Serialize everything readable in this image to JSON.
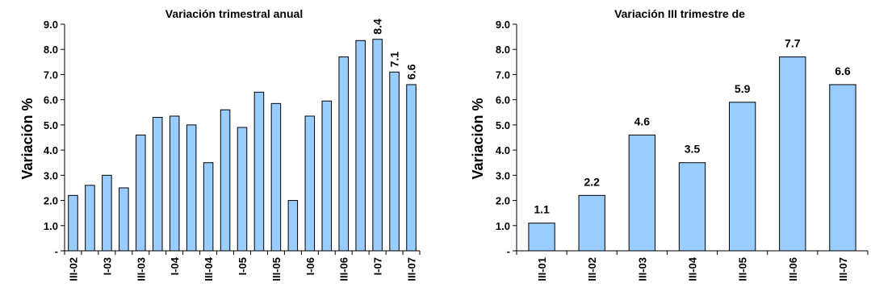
{
  "chart_data": [
    {
      "type": "bar",
      "title": "Variación trimestral anual",
      "ylabel": "Variación %",
      "ylim": [
        0,
        9
      ],
      "yticks": [
        "-",
        "1.0",
        "2.0",
        "3.0",
        "4.0",
        "5.0",
        "6.0",
        "7.0",
        "8.0",
        "9.0"
      ],
      "categories": [
        "III-02",
        "IV-02",
        "I-03",
        "II-03",
        "III-03",
        "IV-03",
        "I-04",
        "II-04",
        "III-04",
        "IV-04",
        "I-05",
        "II-05",
        "III-05",
        "IV-05",
        "I-06",
        "II-06",
        "III-06",
        "IV-06",
        "I-07",
        "II-07",
        "III-07"
      ],
      "category_labels": [
        "III-02",
        "",
        "I-03",
        "",
        "III-03",
        "",
        "I-04",
        "",
        "III-04",
        "",
        "I-05",
        "",
        "III-05",
        "",
        "I-06",
        "",
        "III-06",
        "",
        "I-07",
        "",
        "III-07"
      ],
      "values": [
        2.2,
        2.6,
        3.0,
        2.5,
        4.6,
        5.3,
        5.35,
        5.0,
        3.5,
        5.6,
        4.9,
        6.3,
        5.85,
        2.0,
        5.35,
        5.95,
        7.7,
        8.35,
        8.4,
        7.1,
        6.6
      ],
      "data_labels": [
        "",
        "",
        "",
        "",
        "",
        "",
        "",
        "",
        "",
        "",
        "",
        "",
        "",
        "",
        "",
        "",
        "",
        "",
        "8.4",
        "7.1",
        "6.6"
      ],
      "bar_color": "#99ccff",
      "grid": false
    },
    {
      "type": "bar",
      "title": "Variación III trimestre de",
      "ylabel": "Variación %",
      "ylim": [
        0,
        9
      ],
      "yticks": [
        "-",
        "1.0",
        "2.0",
        "3.0",
        "4.0",
        "5.0",
        "6.0",
        "7.0",
        "8.0",
        "9.0"
      ],
      "categories": [
        "III-01",
        "III-02",
        "III-03",
        "III-04",
        "III-05",
        "III-06",
        "III-07"
      ],
      "category_labels": [
        "III-01",
        "III-02",
        "III-03",
        "III-04",
        "III-05",
        "III-06",
        "III-07"
      ],
      "values": [
        1.1,
        2.2,
        4.6,
        3.5,
        5.9,
        7.7,
        6.6
      ],
      "data_labels": [
        "1.1",
        "2.2",
        "4.6",
        "3.5",
        "5.9",
        "7.7",
        "6.6"
      ],
      "bar_color": "#99ccff",
      "grid": false
    }
  ]
}
